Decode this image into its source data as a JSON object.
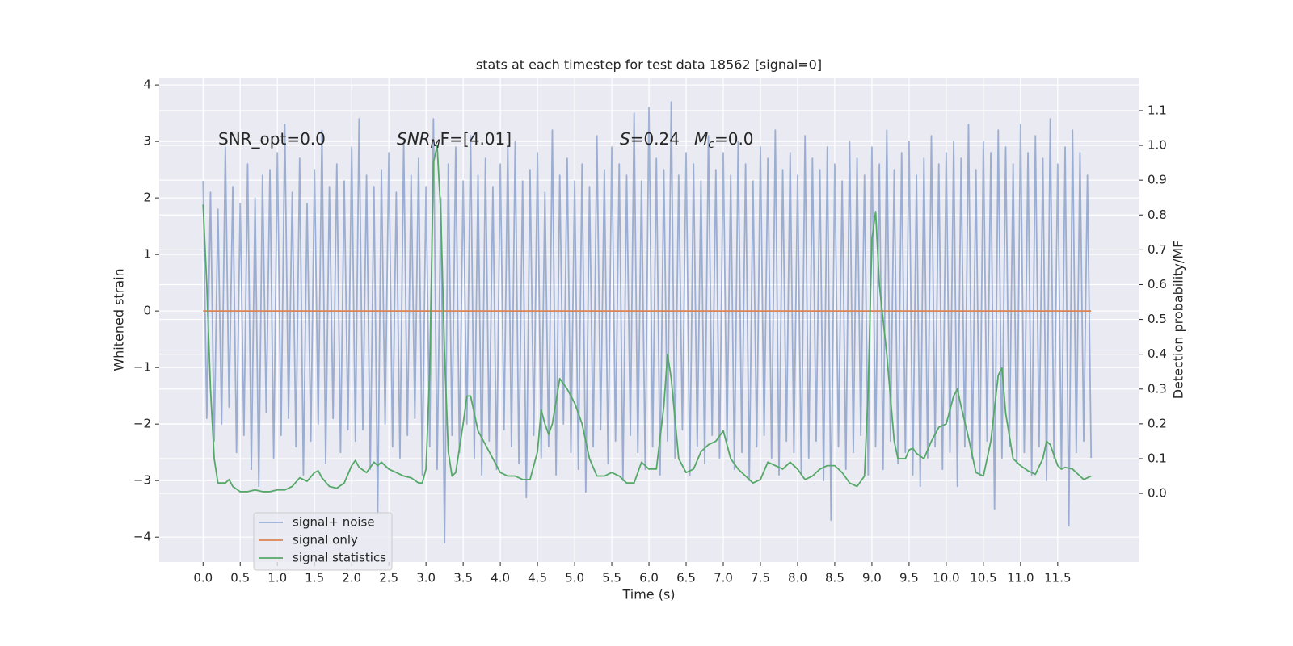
{
  "chart_data": {
    "type": "line",
    "title": "stats at each timestep for test data 18562 [signal=0]",
    "xlabel": "Time (s)",
    "ylabel": "Whitened strain",
    "y2label": "Detection probability/MF",
    "xlim": [
      -0.59,
      12.6
    ],
    "ylim": [
      -4.44,
      4.13
    ],
    "y2lim": [
      -0.197,
      1.195
    ],
    "xticks": [
      {
        "value": 0,
        "label": "0.0"
      },
      0.5,
      {
        "value": 1,
        "label": "1.0"
      },
      1.5,
      {
        "value": 2,
        "label": "2.0"
      },
      2.5,
      {
        "value": 3,
        "label": "3.0"
      },
      3.5,
      {
        "value": 4,
        "label": "4.0"
      },
      4.5,
      {
        "value": 5,
        "label": "5.0"
      },
      5.5,
      {
        "value": 6,
        "label": "6.0"
      },
      6.5,
      {
        "value": 7,
        "label": "7.0"
      },
      7.5,
      {
        "value": 8,
        "label": "8.0"
      },
      8.5,
      {
        "value": 9,
        "label": "9.0"
      },
      9.5,
      {
        "value": 10,
        "label": "10.0"
      },
      10.5,
      {
        "value": 11,
        "label": "11.0"
      },
      11.5
    ],
    "yticks": [
      {
        "value": -4,
        "label": "−4"
      },
      {
        "value": -3,
        "label": "−3"
      },
      {
        "value": -2,
        "label": "−2"
      },
      {
        "value": -1,
        "label": "−1"
      },
      0,
      1,
      2,
      3,
      4
    ],
    "y2ticks": [
      {
        "value": 0,
        "label": "0.0"
      },
      0.1,
      0.2,
      0.3,
      0.4,
      0.5,
      0.6,
      0.7,
      0.8,
      0.9,
      {
        "value": 1,
        "label": "1.0"
      },
      1.1
    ],
    "grid": true,
    "legend": "lower left",
    "annotations": [
      {
        "parts": [
          "SNR_opt=0.0"
        ]
      },
      {
        "parts": [
          "SNR",
          "M",
          "F=[4.01]"
        ]
      },
      {
        "parts": [
          "S",
          "=0.24"
        ]
      },
      {
        "parts": [
          "M",
          "c",
          "=0.0"
        ]
      }
    ],
    "series": [
      {
        "name": "signal+ noise",
        "color": "#4c72b0",
        "opacity": 0.5,
        "x": [
          0,
          0.05,
          0.1,
          0.15,
          0.2,
          0.25,
          0.3,
          0.35,
          0.4,
          0.45,
          0.5,
          0.55,
          0.6,
          0.65,
          0.7,
          0.75,
          0.8,
          0.85,
          0.9,
          0.95,
          1,
          1.05,
          1.1,
          1.15,
          1.2,
          1.25,
          1.3,
          1.35,
          1.4,
          1.45,
          1.5,
          1.55,
          1.6,
          1.65,
          1.7,
          1.75,
          1.8,
          1.85,
          1.9,
          1.95,
          2,
          2.05,
          2.1,
          2.15,
          2.2,
          2.25,
          2.3,
          2.35,
          2.4,
          2.45,
          2.5,
          2.55,
          2.6,
          2.65,
          2.7,
          2.75,
          2.8,
          2.85,
          2.9,
          2.95,
          3,
          3.05,
          3.1,
          3.15,
          3.2,
          3.25,
          3.3,
          3.35,
          3.4,
          3.45,
          3.5,
          3.55,
          3.6,
          3.65,
          3.7,
          3.75,
          3.8,
          3.85,
          3.9,
          3.95,
          4,
          4.05,
          4.1,
          4.15,
          4.2,
          4.25,
          4.3,
          4.35,
          4.4,
          4.45,
          4.5,
          4.55,
          4.6,
          4.65,
          4.7,
          4.75,
          4.8,
          4.85,
          4.9,
          4.95,
          5,
          5.05,
          5.1,
          5.15,
          5.2,
          5.25,
          5.3,
          5.35,
          5.4,
          5.45,
          5.5,
          5.55,
          5.6,
          5.65,
          5.7,
          5.75,
          5.8,
          5.85,
          5.9,
          5.95,
          6,
          6.05,
          6.1,
          6.15,
          6.2,
          6.25,
          6.3,
          6.35,
          6.4,
          6.45,
          6.5,
          6.55,
          6.6,
          6.65,
          6.7,
          6.75,
          6.8,
          6.85,
          6.9,
          6.95,
          7,
          7.05,
          7.1,
          7.15,
          7.2,
          7.25,
          7.3,
          7.35,
          7.4,
          7.45,
          7.5,
          7.55,
          7.6,
          7.65,
          7.7,
          7.75,
          7.8,
          7.85,
          7.9,
          7.95,
          8,
          8.05,
          8.1,
          8.15,
          8.2,
          8.25,
          8.3,
          8.35,
          8.4,
          8.45,
          8.5,
          8.55,
          8.6,
          8.65,
          8.7,
          8.75,
          8.8,
          8.85,
          8.9,
          8.95,
          9,
          9.05,
          9.1,
          9.15,
          9.2,
          9.25,
          9.3,
          9.35,
          9.4,
          9.45,
          9.5,
          9.55,
          9.6,
          9.65,
          9.7,
          9.75,
          9.8,
          9.85,
          9.9,
          9.95,
          10,
          10.05,
          10.1,
          10.15,
          10.2,
          10.25,
          10.3,
          10.35,
          10.4,
          10.45,
          10.5,
          10.55,
          10.6,
          10.65,
          10.7,
          10.75,
          10.8,
          10.85,
          10.9,
          10.95,
          11,
          11.05,
          11.1,
          11.15,
          11.2,
          11.25,
          11.3,
          11.35,
          11.4,
          11.45,
          11.5,
          11.55,
          11.6,
          11.65,
          11.7,
          11.75,
          11.8,
          11.85,
          11.9,
          11.95
        ],
        "values": [
          2.3,
          -1.9,
          2.1,
          -2.3,
          1.8,
          -2.0,
          2.9,
          -1.7,
          2.2,
          -2.5,
          1.9,
          -2.2,
          2.6,
          -2.8,
          2.0,
          -3.1,
          2.4,
          -1.8,
          2.5,
          -2.6,
          2.8,
          -2.2,
          3.3,
          -1.9,
          2.1,
          -2.4,
          2.7,
          -2.9,
          1.9,
          -2.3,
          2.5,
          -2.0,
          3.2,
          -2.7,
          2.2,
          -1.9,
          2.6,
          -2.5,
          2.3,
          -2.1,
          2.9,
          -2.3,
          3.4,
          -2.1,
          2.4,
          -2.8,
          2.2,
          -3.6,
          2.5,
          -2.0,
          2.8,
          -2.4,
          2.1,
          -2.6,
          3.0,
          -2.2,
          2.4,
          -1.9,
          2.7,
          -2.9,
          2.2,
          -2.4,
          3.4,
          -2.8,
          2.0,
          -4.1,
          2.6,
          -2.2,
          2.9,
          -2.5,
          2.3,
          -2.0,
          3.1,
          -2.6,
          2.4,
          -2.9,
          2.7,
          -2.3,
          2.2,
          -2.8,
          2.6,
          -2.1,
          2.9,
          -2.4,
          3.0,
          -2.7,
          2.3,
          -3.3,
          2.5,
          -2.2,
          2.8,
          -2.6,
          2.1,
          -2.4,
          3.2,
          -2.9,
          2.4,
          -2.0,
          2.7,
          -2.5,
          2.3,
          -2.8,
          2.6,
          -3.2,
          2.2,
          -2.4,
          3.1,
          -2.1,
          2.5,
          -2.7,
          2.9,
          -2.3,
          2.6,
          -3.0,
          2.4,
          -2.2,
          3.5,
          -2.5,
          2.3,
          -2.8,
          3.6,
          -2.4,
          2.7,
          -2.9,
          2.5,
          -2.3,
          3.7,
          -2.6,
          2.4,
          -2.1,
          2.8,
          -2.9,
          2.6,
          -2.4,
          2.3,
          -2.7,
          3.1,
          -2.2,
          2.5,
          -2.6,
          2.8,
          -2.3,
          2.4,
          -2.8,
          3.0,
          -2.5,
          2.6,
          -3.0,
          2.3,
          -2.4,
          2.9,
          -2.2,
          2.7,
          -2.6,
          3.2,
          -2.9,
          2.5,
          -2.3,
          2.8,
          -2.5,
          2.4,
          -2.9,
          3.1,
          -2.6,
          2.7,
          -2.3,
          2.5,
          -3.0,
          2.9,
          -3.7,
          2.6,
          -2.4,
          2.3,
          -2.8,
          3.0,
          -2.5,
          2.7,
          -2.2,
          2.4,
          -2.9,
          2.9,
          -2.4,
          2.6,
          -2.8,
          3.2,
          -2.3,
          2.5,
          -2.7,
          2.8,
          -2.5,
          3.0,
          -2.9,
          2.4,
          -3.1,
          2.7,
          -2.6,
          3.1,
          -2.4,
          2.6,
          -2.8,
          2.8,
          -2.5,
          3.0,
          -3.1,
          2.7,
          -2.4,
          3.3,
          -2.6,
          2.5,
          -2.9,
          3.0,
          -2.3,
          2.8,
          -3.5,
          3.2,
          -2.6,
          2.9,
          -2.4,
          2.6,
          -2.7,
          3.3,
          -2.5,
          2.8,
          -2.9,
          3.1,
          -2.4,
          2.7,
          -3.0,
          3.4,
          -2.6,
          2.6,
          -2.8,
          2.9,
          -3.8,
          3.2,
          -2.5,
          2.8,
          -2.3,
          2.4,
          -2.6
        ]
      },
      {
        "name": "signal only",
        "color": "#dd8452",
        "x": [
          0,
          11.95
        ],
        "values": [
          0,
          0
        ]
      },
      {
        "name": "signal statistics",
        "color": "#55a868",
        "axis": "y2",
        "x": [
          0,
          0.05,
          0.1,
          0.15,
          0.2,
          0.3,
          0.35,
          0.4,
          0.5,
          0.6,
          0.7,
          0.8,
          0.9,
          1,
          1.1,
          1.2,
          1.3,
          1.4,
          1.5,
          1.55,
          1.6,
          1.7,
          1.8,
          1.9,
          2,
          2.05,
          2.1,
          2.2,
          2.3,
          2.35,
          2.4,
          2.5,
          2.6,
          2.7,
          2.8,
          2.9,
          2.95,
          3,
          3.05,
          3.1,
          3.15,
          3.2,
          3.25,
          3.3,
          3.35,
          3.4,
          3.5,
          3.55,
          3.6,
          3.7,
          3.8,
          3.9,
          4,
          4.1,
          4.2,
          4.3,
          4.4,
          4.5,
          4.55,
          4.6,
          4.65,
          4.7,
          4.8,
          4.9,
          5,
          5.1,
          5.2,
          5.3,
          5.4,
          5.5,
          5.6,
          5.7,
          5.8,
          5.9,
          6,
          6.1,
          6.2,
          6.25,
          6.3,
          6.4,
          6.5,
          6.6,
          6.7,
          6.8,
          6.9,
          7,
          7.1,
          7.2,
          7.3,
          7.4,
          7.5,
          7.6,
          7.7,
          7.8,
          7.9,
          8,
          8.1,
          8.2,
          8.3,
          8.4,
          8.5,
          8.6,
          8.7,
          8.8,
          8.9,
          8.95,
          9,
          9.05,
          9.1,
          9.2,
          9.3,
          9.35,
          9.45,
          9.5,
          9.55,
          9.6,
          9.7,
          9.8,
          9.9,
          10,
          10.1,
          10.15,
          10.2,
          10.3,
          10.4,
          10.5,
          10.6,
          10.7,
          10.75,
          10.8,
          10.9,
          11,
          11.1,
          11.2,
          11.3,
          11.35,
          11.4,
          11.5,
          11.55,
          11.6,
          11.7,
          11.8,
          11.85,
          11.95
        ],
        "values": [
          0.83,
          0.6,
          0.3,
          0.1,
          0.03,
          0.03,
          0.04,
          0.02,
          0.005,
          0.005,
          0.01,
          0.005,
          0.005,
          0.01,
          0.01,
          0.02,
          0.045,
          0.035,
          0.06,
          0.065,
          0.045,
          0.02,
          0.015,
          0.03,
          0.08,
          0.095,
          0.075,
          0.06,
          0.09,
          0.08,
          0.09,
          0.07,
          0.06,
          0.05,
          0.045,
          0.03,
          0.03,
          0.07,
          0.35,
          0.95,
          1.0,
          0.8,
          0.4,
          0.12,
          0.05,
          0.06,
          0.2,
          0.28,
          0.28,
          0.18,
          0.14,
          0.1,
          0.06,
          0.05,
          0.05,
          0.04,
          0.04,
          0.12,
          0.24,
          0.2,
          0.17,
          0.2,
          0.33,
          0.3,
          0.26,
          0.2,
          0.1,
          0.05,
          0.05,
          0.06,
          0.05,
          0.03,
          0.03,
          0.09,
          0.07,
          0.07,
          0.25,
          0.4,
          0.33,
          0.1,
          0.06,
          0.07,
          0.12,
          0.14,
          0.15,
          0.18,
          0.1,
          0.07,
          0.05,
          0.03,
          0.04,
          0.09,
          0.08,
          0.07,
          0.09,
          0.07,
          0.04,
          0.05,
          0.07,
          0.08,
          0.08,
          0.06,
          0.03,
          0.02,
          0.05,
          0.3,
          0.73,
          0.81,
          0.6,
          0.4,
          0.15,
          0.1,
          0.1,
          0.125,
          0.13,
          0.115,
          0.1,
          0.15,
          0.19,
          0.2,
          0.28,
          0.3,
          0.25,
          0.16,
          0.06,
          0.05,
          0.15,
          0.34,
          0.36,
          0.23,
          0.1,
          0.08,
          0.065,
          0.055,
          0.1,
          0.15,
          0.14,
          0.08,
          0.07,
          0.075,
          0.07,
          0.05,
          0.04,
          0.05
        ]
      }
    ]
  }
}
